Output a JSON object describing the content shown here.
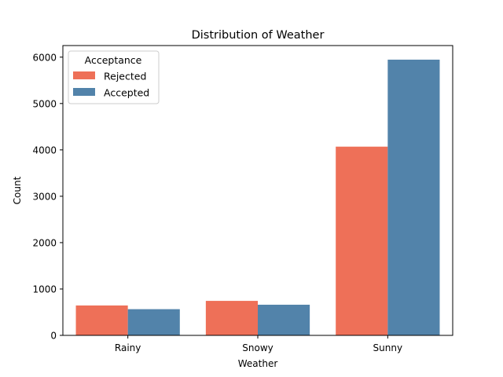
{
  "chart_data": {
    "type": "bar",
    "title": "Distribution of Weather",
    "xlabel": "Weather",
    "ylabel": "Count",
    "categories": [
      "Rainy",
      "Snowy",
      "Sunny"
    ],
    "series": [
      {
        "name": "Rejected",
        "color": "#ee7058",
        "values": [
          645,
          744,
          4070
        ]
      },
      {
        "name": "Accepted",
        "color": "#5283aa",
        "values": [
          565,
          661,
          5946
        ]
      }
    ],
    "ylim": [
      0,
      6250
    ],
    "yticks": [
      0,
      1000,
      2000,
      3000,
      4000,
      5000,
      6000
    ],
    "legend": {
      "title": "Acceptance",
      "placement": "top-left"
    },
    "grid": false
  }
}
